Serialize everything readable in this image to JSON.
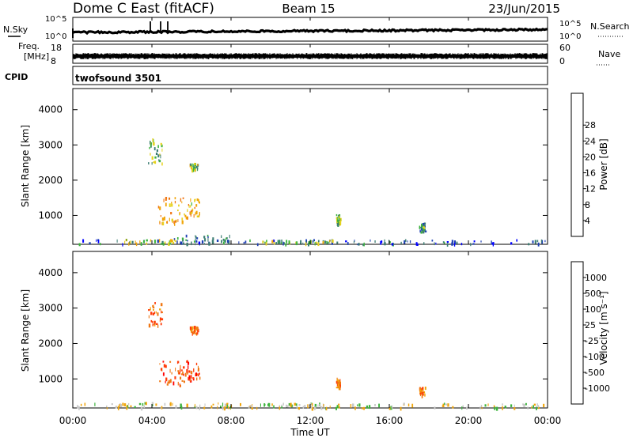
{
  "header": {
    "station": "Dome C East (fitACF)",
    "beam": "Beam 15",
    "date": "23/Jun/2015"
  },
  "parameters": {
    "nsky_label": "N.Sky",
    "nsearch_label": "N.Search",
    "freq_label_1": "Freq.",
    "freq_label_2": "[MHz]",
    "nave_label": "Nave",
    "cpid_label": "CPID",
    "cpid_value": "twofsound 3501",
    "noise_ticks_left": [
      "10^5",
      "10^0"
    ],
    "noise_ticks_right": [
      "10^5",
      "10^0"
    ],
    "freq_ticks": [
      "18",
      "8"
    ],
    "nave_ticks": [
      "60",
      "0"
    ]
  },
  "x_axis": {
    "label": "Time UT",
    "ticks": [
      "00:00",
      "04:00",
      "08:00",
      "12:00",
      "16:00",
      "20:00",
      "00:00"
    ]
  },
  "chart_data": [
    {
      "type": "heatmap",
      "name": "power",
      "ylabel": "Slant Range [km]",
      "yticks": [
        "1000",
        "2000",
        "3000",
        "4000"
      ],
      "ylim": [
        180,
        4600
      ],
      "xlim_hours": [
        0,
        24
      ],
      "colorbar_label": "Power [dB]",
      "colorbar_ticks": [
        "4",
        "8",
        "12",
        "16",
        "20",
        "24",
        "28"
      ],
      "colorbar_colors": [
        "#0000ff",
        "#1e40b4",
        "#3c7d73",
        "#3cb43c",
        "#e6d21e",
        "#f0a50a",
        "#f07814",
        "#ff3c0a",
        "#ff0000"
      ],
      "regions": [
        {
          "x0": 0.2,
          "x1": 23.9,
          "y0": 200,
          "y1": 330,
          "level": 1.5
        },
        {
          "x0": 2.6,
          "x1": 5.2,
          "y0": 220,
          "y1": 340,
          "level": 4
        },
        {
          "x0": 9.5,
          "x1": 13.2,
          "y0": 230,
          "y1": 320,
          "level": 3.5
        },
        {
          "x0": 5.1,
          "x1": 8.0,
          "y0": 240,
          "y1": 460,
          "level": 2
        },
        {
          "x0": 4.3,
          "x1": 5.6,
          "y0": 800,
          "y1": 1550,
          "level": 5
        },
        {
          "x0": 5.6,
          "x1": 6.4,
          "y0": 950,
          "y1": 1550,
          "level": 4.5
        },
        {
          "x0": 3.8,
          "x1": 4.5,
          "y0": 2500,
          "y1": 3200,
          "level": 3
        },
        {
          "x0": 5.9,
          "x1": 6.3,
          "y0": 2300,
          "y1": 2500,
          "level": 3.5
        },
        {
          "x0": 13.3,
          "x1": 13.5,
          "y0": 750,
          "y1": 1050,
          "level": 3
        },
        {
          "x0": 17.5,
          "x1": 17.8,
          "y0": 550,
          "y1": 800,
          "level": 2.5
        }
      ]
    },
    {
      "type": "heatmap",
      "name": "velocity",
      "ylabel": "Slant Range [km]",
      "yticks": [
        "1000",
        "2000",
        "3000",
        "4000"
      ],
      "ylim": [
        180,
        4600
      ],
      "xlim_hours": [
        0,
        24
      ],
      "colorbar_label": "Velocity [m s⁻¹]",
      "colorbar_ticks": [
        "1000",
        "500",
        "100",
        "25",
        "-25",
        "-100",
        "-500",
        "-1000"
      ],
      "colorbar_colors": [
        "#0000ff",
        "#1e40b4",
        "#3c7d73",
        "#3cb43c",
        "#c8c8c8",
        "#f0a50a",
        "#f07814",
        "#ff3c0a",
        "#ff0000"
      ],
      "regions": [
        {
          "x0": 0.2,
          "x1": 23.9,
          "y0": 200,
          "y1": 330,
          "level": 4
        },
        {
          "x0": 2.6,
          "x1": 8.0,
          "y0": 210,
          "y1": 350,
          "level": 4
        },
        {
          "x0": 9.5,
          "x1": 13.2,
          "y0": 220,
          "y1": 320,
          "level": 4
        },
        {
          "x0": 4.3,
          "x1": 5.6,
          "y0": 800,
          "y1": 1550,
          "level": 7
        },
        {
          "x0": 5.6,
          "x1": 6.4,
          "y0": 950,
          "y1": 1550,
          "level": 7
        },
        {
          "x0": 3.8,
          "x1": 4.5,
          "y0": 2500,
          "y1": 3200,
          "level": 6
        },
        {
          "x0": 5.9,
          "x1": 6.3,
          "y0": 2300,
          "y1": 2500,
          "level": 6
        },
        {
          "x0": 13.3,
          "x1": 13.5,
          "y0": 750,
          "y1": 1050,
          "level": 6
        },
        {
          "x0": 17.5,
          "x1": 17.8,
          "y0": 550,
          "y1": 800,
          "level": 6
        }
      ]
    }
  ]
}
